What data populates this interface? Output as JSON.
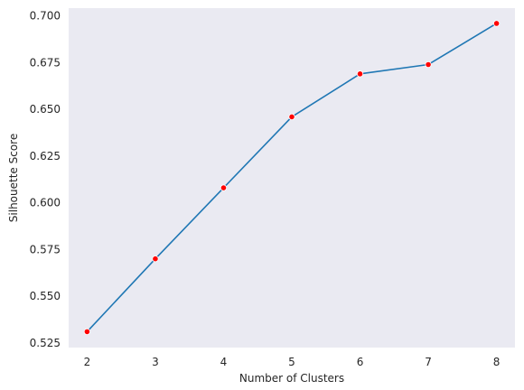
{
  "chart_data": {
    "type": "line",
    "title": "",
    "xlabel": "Number of Clusters",
    "ylabel": "Silhouette Score",
    "x": [
      2,
      3,
      4,
      5,
      6,
      7,
      8
    ],
    "series": [
      {
        "values": [
          0.531,
          0.57,
          0.608,
          0.646,
          0.669,
          0.674,
          0.696
        ],
        "line_color": "#1f77b4",
        "marker_color": "#ff0000"
      }
    ],
    "xticks": [
      "2",
      "3",
      "4",
      "5",
      "6",
      "7",
      "8"
    ],
    "yticks": [
      0.525,
      0.55,
      0.575,
      0.6,
      0.625,
      0.65,
      0.675,
      0.7
    ],
    "ytick_labels": [
      "0.525",
      "0.550",
      "0.575",
      "0.600",
      "0.625",
      "0.650",
      "0.675",
      "0.700"
    ],
    "xlim": [
      1.73,
      8.27
    ],
    "ylim": [
      0.5225,
      0.7042
    ],
    "grid": false,
    "background_color": "#eaeaf2"
  }
}
